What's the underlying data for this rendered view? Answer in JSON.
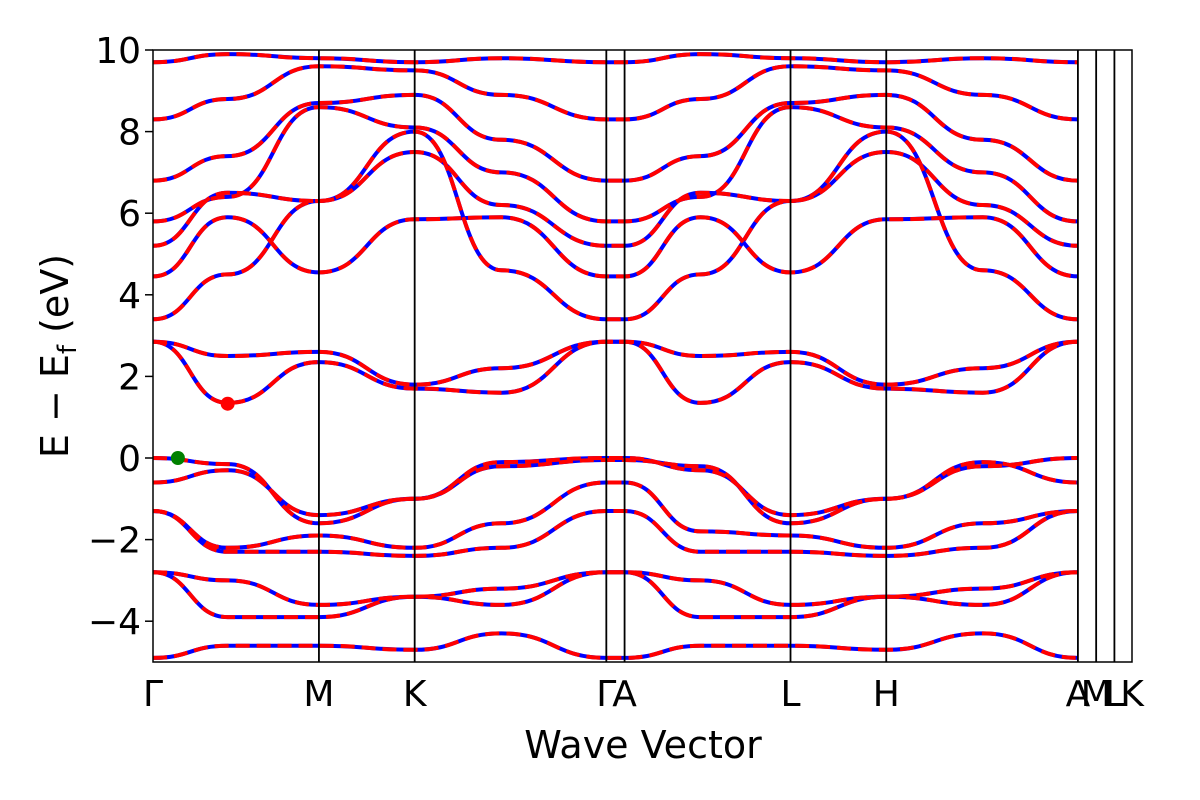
{
  "chart_data": {
    "type": "line",
    "title": "",
    "xlabel": "Wave Vector",
    "ylabel": "E − E",
    "ylabel_sub": "f",
    "ylabel_unit": " (eV)",
    "ylim": [
      -5,
      10
    ],
    "yticks": [
      -4,
      -2,
      0,
      2,
      4,
      6,
      8,
      10
    ],
    "ytick_labels": [
      "−4",
      "−2",
      "0",
      "2",
      "4",
      "6",
      "8",
      "10"
    ],
    "grid": false,
    "legend": "none",
    "xlim": [
      0,
      5.9
    ],
    "kpath": [
      {
        "label": "Γ",
        "x": 0.0
      },
      {
        "label": "M",
        "x": 1.0
      },
      {
        "label": "K",
        "x": 1.577
      },
      {
        "label": "Γ",
        "x": 2.732
      },
      {
        "label": "A",
        "x": 2.842
      },
      {
        "label": "L",
        "x": 3.842
      },
      {
        "label": "H",
        "x": 4.419
      },
      {
        "label": "A",
        "x": 5.574
      },
      {
        "label": "M",
        "x": 5.684
      },
      {
        "label": "L",
        "x": 5.794
      },
      {
        "label": "K",
        "x": 5.9
      }
    ],
    "series": [
      {
        "color": "#0000ff",
        "dash": "solid"
      },
      {
        "color": "#ff0000",
        "dash": "dashed"
      }
    ],
    "bands": [
      {
        "x": [
          0.0,
          0.45,
          1.0,
          1.577,
          2.1,
          2.732,
          2.842,
          3.3,
          3.842,
          4.419,
          5.0,
          5.574
        ],
        "y": [
          -0.6,
          -0.3,
          -1.4,
          -1.0,
          -0.1,
          0.0,
          0.0,
          -0.3,
          -1.4,
          -1.0,
          -0.1,
          -0.6
        ]
      },
      {
        "x": [
          0.0,
          0.45,
          1.0,
          1.577,
          2.1,
          2.732,
          2.842,
          3.3,
          3.842,
          4.419,
          5.0,
          5.574
        ],
        "y": [
          0.0,
          -0.15,
          -1.6,
          -1.0,
          -0.2,
          -0.05,
          -0.05,
          -0.2,
          -1.6,
          -1.0,
          -0.2,
          0.0
        ]
      },
      {
        "x": [
          0.0,
          0.45,
          1.0,
          1.577,
          2.1,
          2.732,
          2.842,
          3.3,
          3.842,
          4.419,
          5.0,
          5.574
        ],
        "y": [
          -1.3,
          -2.2,
          -1.9,
          -2.2,
          -1.6,
          -0.6,
          -0.6,
          -1.8,
          -1.9,
          -2.2,
          -1.6,
          -1.3
        ]
      },
      {
        "x": [
          0.0,
          0.45,
          1.0,
          1.577,
          2.1,
          2.732,
          2.842,
          3.3,
          3.842,
          4.419,
          5.0,
          5.574
        ],
        "y": [
          -1.3,
          -2.3,
          -2.3,
          -2.4,
          -2.2,
          -1.3,
          -1.3,
          -2.3,
          -2.3,
          -2.4,
          -2.2,
          -1.3
        ]
      },
      {
        "x": [
          0.0,
          0.45,
          1.0,
          1.577,
          2.1,
          2.732,
          2.842,
          3.3,
          3.842,
          4.419,
          5.0,
          5.574
        ],
        "y": [
          -2.8,
          -3.0,
          -3.6,
          -3.4,
          -3.2,
          -2.8,
          -2.8,
          -3.0,
          -3.6,
          -3.4,
          -3.2,
          -2.8
        ]
      },
      {
        "x": [
          0.0,
          0.45,
          1.0,
          1.577,
          2.1,
          2.732,
          2.842,
          3.3,
          3.842,
          4.419,
          5.0,
          5.574
        ],
        "y": [
          -2.8,
          -3.9,
          -3.9,
          -3.4,
          -3.6,
          -2.8,
          -2.8,
          -3.9,
          -3.9,
          -3.4,
          -3.6,
          -2.8
        ]
      },
      {
        "x": [
          0.0,
          0.45,
          1.0,
          1.577,
          2.1,
          2.732,
          2.842,
          3.3,
          3.842,
          4.419,
          5.0,
          5.574
        ],
        "y": [
          -4.9,
          -4.6,
          -4.6,
          -4.7,
          -4.3,
          -4.9,
          -4.9,
          -4.6,
          -4.6,
          -4.7,
          -4.3,
          -4.9
        ]
      },
      {
        "x": [
          0.0,
          0.45,
          1.0,
          1.577,
          2.1,
          2.732,
          2.842,
          3.3,
          3.842,
          4.419,
          5.0,
          5.574
        ],
        "y": [
          2.85,
          1.35,
          2.35,
          1.7,
          1.6,
          2.85,
          2.85,
          1.35,
          2.35,
          1.7,
          1.6,
          2.85
        ]
      },
      {
        "x": [
          0.0,
          0.45,
          1.0,
          1.577,
          2.1,
          2.732,
          2.842,
          3.3,
          3.842,
          4.419,
          5.0,
          5.574
        ],
        "y": [
          2.85,
          2.5,
          2.6,
          1.8,
          2.2,
          2.85,
          2.85,
          2.5,
          2.6,
          1.8,
          2.2,
          2.85
        ]
      },
      {
        "x": [
          0.0,
          0.45,
          1.0,
          1.577,
          2.1,
          2.732,
          2.842,
          3.3,
          3.842,
          4.419,
          5.0,
          5.574
        ],
        "y": [
          4.45,
          5.9,
          4.55,
          5.85,
          5.9,
          4.45,
          4.45,
          5.9,
          4.55,
          5.85,
          5.9,
          4.45
        ]
      },
      {
        "x": [
          0.0,
          0.45,
          1.0,
          1.577,
          2.1,
          2.732,
          2.842,
          3.3,
          3.842,
          4.419,
          5.0,
          5.574
        ],
        "y": [
          3.4,
          4.5,
          6.3,
          8.0,
          4.6,
          3.4,
          3.4,
          4.5,
          6.3,
          8.0,
          4.6,
          3.4
        ]
      },
      {
        "x": [
          0.0,
          0.45,
          1.0,
          1.577,
          2.1,
          2.732,
          2.842,
          3.3,
          3.842,
          4.419,
          5.0,
          5.574
        ],
        "y": [
          5.2,
          6.5,
          6.3,
          7.5,
          6.2,
          5.2,
          5.2,
          6.5,
          6.3,
          7.5,
          6.2,
          5.2
        ]
      },
      {
        "x": [
          0.0,
          0.45,
          1.0,
          1.577,
          2.1,
          2.732,
          2.842,
          3.3,
          3.842,
          4.419,
          5.0,
          5.574
        ],
        "y": [
          5.8,
          6.4,
          8.6,
          8.1,
          7.0,
          5.8,
          5.8,
          6.4,
          8.6,
          8.1,
          7.0,
          5.8
        ]
      },
      {
        "x": [
          0.0,
          0.45,
          1.0,
          1.577,
          2.1,
          2.732,
          2.842,
          3.3,
          3.842,
          4.419,
          5.0,
          5.574
        ],
        "y": [
          6.8,
          7.4,
          8.7,
          8.9,
          7.8,
          6.8,
          6.8,
          7.4,
          8.7,
          8.9,
          7.8,
          6.8
        ]
      },
      {
        "x": [
          0.0,
          0.45,
          1.0,
          1.577,
          2.1,
          2.732,
          2.842,
          3.3,
          3.842,
          4.419,
          5.0,
          5.574
        ],
        "y": [
          8.3,
          8.8,
          9.6,
          9.5,
          8.9,
          8.3,
          8.3,
          8.8,
          9.6,
          9.5,
          8.9,
          8.3
        ]
      },
      {
        "x": [
          0.0,
          0.45,
          1.0,
          1.577,
          2.1,
          2.732,
          2.842,
          3.3,
          3.842,
          4.419,
          5.0,
          5.574
        ],
        "y": [
          9.7,
          9.9,
          9.8,
          9.7,
          9.8,
          9.7,
          9.7,
          9.9,
          9.8,
          9.7,
          9.8,
          9.7
        ]
      }
    ],
    "markers": [
      {
        "x": 0.15,
        "y": 0.0,
        "color": "#008000"
      },
      {
        "x": 0.45,
        "y": 1.33,
        "color": "#ff0000"
      }
    ]
  }
}
